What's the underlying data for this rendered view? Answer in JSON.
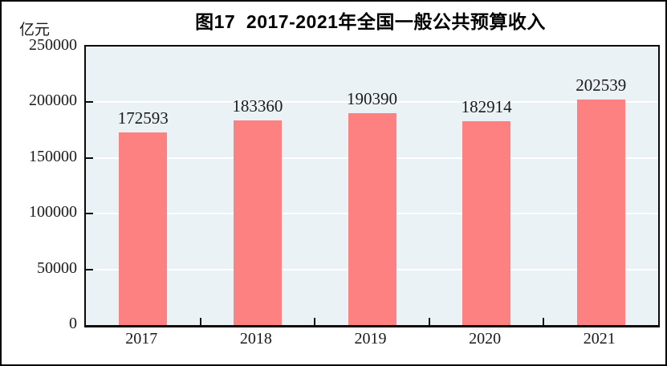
{
  "title": "图17  2017-2021年全国一般公共预算收入",
  "y_unit_label": "亿元",
  "colors": {
    "bar": "#FC8180",
    "plot_background": "#EAF2F6",
    "gridline": "#FFFFFF",
    "axis": "#0B0B0B",
    "text": "#1A1A1A"
  },
  "chart_data": {
    "type": "bar",
    "categories": [
      "2017",
      "2018",
      "2019",
      "2020",
      "2021"
    ],
    "values": [
      172593,
      183360,
      190390,
      182914,
      202539
    ],
    "title": "图17  2017-2021年全国一般公共预算收入",
    "xlabel": "",
    "ylabel": "亿元",
    "ylim": [
      0,
      250000
    ],
    "ytick_step": 50000,
    "ytick_labels": [
      "0",
      "50000",
      "100000",
      "150000",
      "200000",
      "250000"
    ],
    "grid": true,
    "legend": "none",
    "value_labels_shown": true
  }
}
